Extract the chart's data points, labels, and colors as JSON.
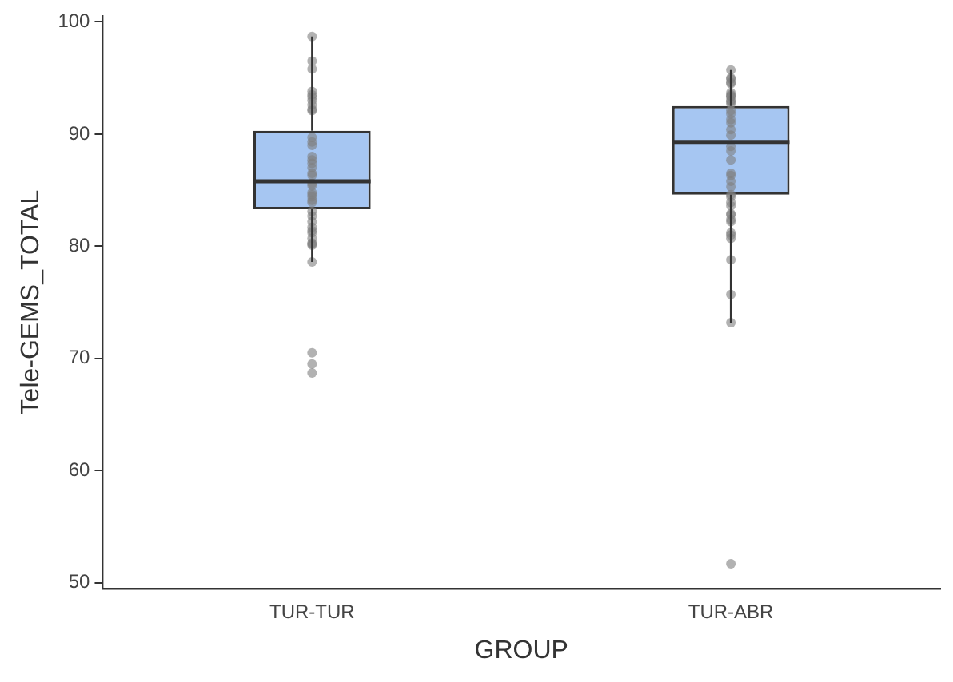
{
  "chart_data": {
    "type": "box",
    "xlabel": "GROUP",
    "ylabel": "Tele-GEMS_TOTAL",
    "categories": [
      "TUR-TUR",
      "TUR-ABR"
    ],
    "color": "#a6c6f2",
    "boxes": [
      {
        "low": 78.6,
        "q1": 83.3,
        "median": 85.8,
        "q3": 90.3,
        "high": 98.7
      },
      {
        "low": 73.2,
        "q1": 84.6,
        "median": 89.3,
        "q3": 92.5,
        "high": 95.7
      }
    ],
    "ylim": [
      49.5,
      100.5
    ],
    "yticks": [
      50,
      60,
      70,
      80,
      90,
      100
    ],
    "grid": false,
    "legend": false,
    "series": [
      {
        "type": "scatter",
        "color": "#7f7f7f",
        "marker": "circle",
        "x": [
          "TUR-TUR",
          "TUR-TUR",
          "TUR-TUR",
          "TUR-TUR",
          "TUR-TUR",
          "TUR-TUR",
          "TUR-TUR",
          "TUR-TUR",
          "TUR-TUR",
          "TUR-TUR",
          "TUR-TUR",
          "TUR-TUR",
          "TUR-TUR",
          "TUR-TUR",
          "TUR-TUR",
          "TUR-TUR",
          "TUR-TUR",
          "TUR-TUR",
          "TUR-TUR",
          "TUR-TUR",
          "TUR-TUR",
          "TUR-TUR",
          "TUR-TUR",
          "TUR-TUR",
          "TUR-TUR",
          "TUR-TUR",
          "TUR-TUR",
          "TUR-TUR",
          "TUR-TUR",
          "TUR-TUR",
          "TUR-TUR",
          "TUR-TUR",
          "TUR-TUR",
          "TUR-TUR",
          "TUR-TUR",
          "TUR-TUR",
          "TUR-TUR",
          "TUR-TUR",
          "TUR-TUR",
          "TUR-TUR",
          "TUR-ABR",
          "TUR-ABR",
          "TUR-ABR",
          "TUR-ABR",
          "TUR-ABR",
          "TUR-ABR",
          "TUR-ABR",
          "TUR-ABR",
          "TUR-ABR",
          "TUR-ABR",
          "TUR-ABR",
          "TUR-ABR",
          "TUR-ABR",
          "TUR-ABR",
          "TUR-ABR",
          "TUR-ABR",
          "TUR-ABR",
          "TUR-ABR",
          "TUR-ABR",
          "TUR-ABR",
          "TUR-ABR",
          "TUR-ABR",
          "TUR-ABR",
          "TUR-ABR",
          "TUR-ABR",
          "TUR-ABR",
          "TUR-ABR",
          "TUR-ABR",
          "TUR-ABR",
          "TUR-ABR",
          "TUR-ABR",
          "TUR-ABR",
          "TUR-ABR",
          "TUR-ABR",
          "TUR-ABR",
          "TUR-ABR",
          "TUR-ABR",
          "TUR-ABR",
          "TUR-ABR",
          "TUR-ABR"
        ],
        "values": [
          98.7,
          96.5,
          95.8,
          93.8,
          93.5,
          93.3,
          93.0,
          92.6,
          92.2,
          92.1,
          89.7,
          89.3,
          89.0,
          88.0,
          87.7,
          87.4,
          87.0,
          86.5,
          86.3,
          85.6,
          85.4,
          84.8,
          84.6,
          84.4,
          84.1,
          83.9,
          83.1,
          82.7,
          82.2,
          81.7,
          81.4,
          81.2,
          80.7,
          80.3,
          80.2,
          80.1,
          78.6,
          70.5,
          69.5,
          68.7,
          95.7,
          95.0,
          94.9,
          94.6,
          94.5,
          93.7,
          93.5,
          93.4,
          93.3,
          93.0,
          92.9,
          92.7,
          92.1,
          91.8,
          91.3,
          91.0,
          90.4,
          89.9,
          88.9,
          88.5,
          87.7,
          86.5,
          86.3,
          85.8,
          85.3,
          84.6,
          84.4,
          83.9,
          83.6,
          82.9,
          82.8,
          82.4,
          82.2,
          81.2,
          81.0,
          80.7,
          78.8,
          75.7,
          73.2,
          51.7
        ]
      }
    ]
  }
}
